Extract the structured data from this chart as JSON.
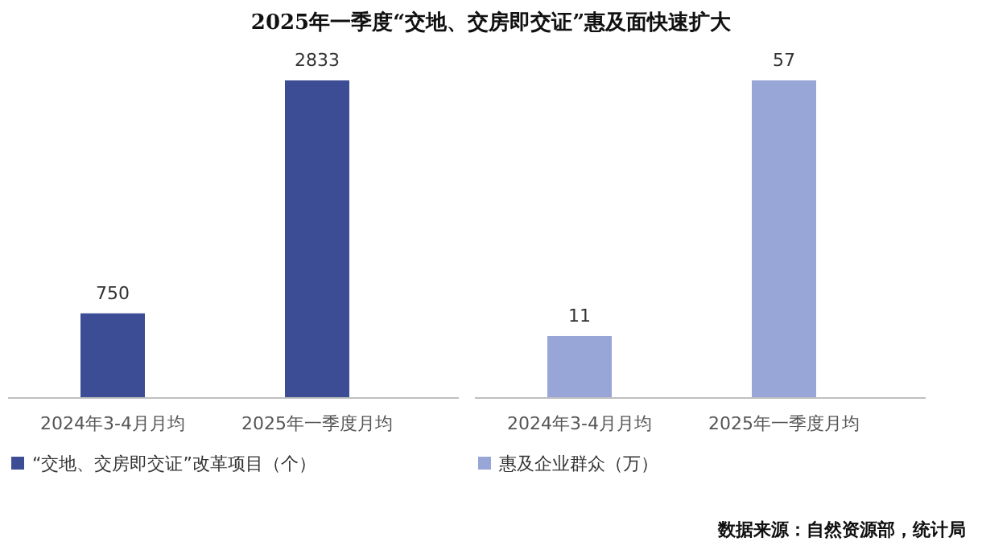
{
  "chart_data": [
    {
      "type": "bar",
      "title": "2025年一季度“交地、交房即交证”惠及面快速扩大",
      "categories": [
        "2024年3-4月月均",
        "2025年一季度月均"
      ],
      "series": [
        {
          "name": "“交地、交房即交证”改革项目（个）",
          "color": "#3d4d95",
          "values": [
            750,
            2833
          ]
        }
      ],
      "data_labels": true,
      "legend": "bottom"
    },
    {
      "type": "bar",
      "categories": [
        "2024年3-4月月均",
        "2025年一季度月均"
      ],
      "series": [
        {
          "name": "惠及企业群众（万）",
          "color": "#97a5d7",
          "values": [
            11,
            57
          ]
        }
      ],
      "data_labels": true,
      "legend": "bottom",
      "annotations": [
        "数据来源：自然资源部，统计局"
      ]
    }
  ]
}
